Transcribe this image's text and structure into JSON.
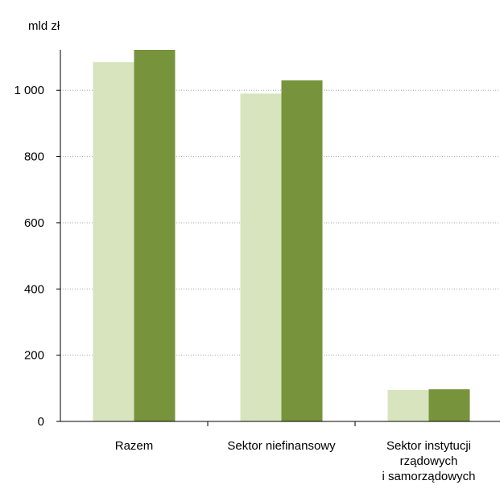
{
  "chart_data": {
    "type": "bar",
    "ylabel": "mld zł",
    "categories": [
      [
        "Razem"
      ],
      [
        "Sektor niefinansowy"
      ],
      [
        "Sektor instytucji",
        "rządowych",
        "i samorządowych"
      ]
    ],
    "series": [
      {
        "color": "#d7e4bd",
        "values": [
          1085,
          990,
          95
        ]
      },
      {
        "color": "#77933c",
        "values": [
          1122,
          1030,
          97
        ]
      }
    ],
    "ylim": [
      0,
      1122
    ],
    "yticks": [
      0,
      200,
      400,
      600,
      800,
      1000
    ],
    "ytick_labels": [
      "0",
      "200",
      "400",
      "600",
      "800",
      "1 000"
    ],
    "grid": true
  }
}
